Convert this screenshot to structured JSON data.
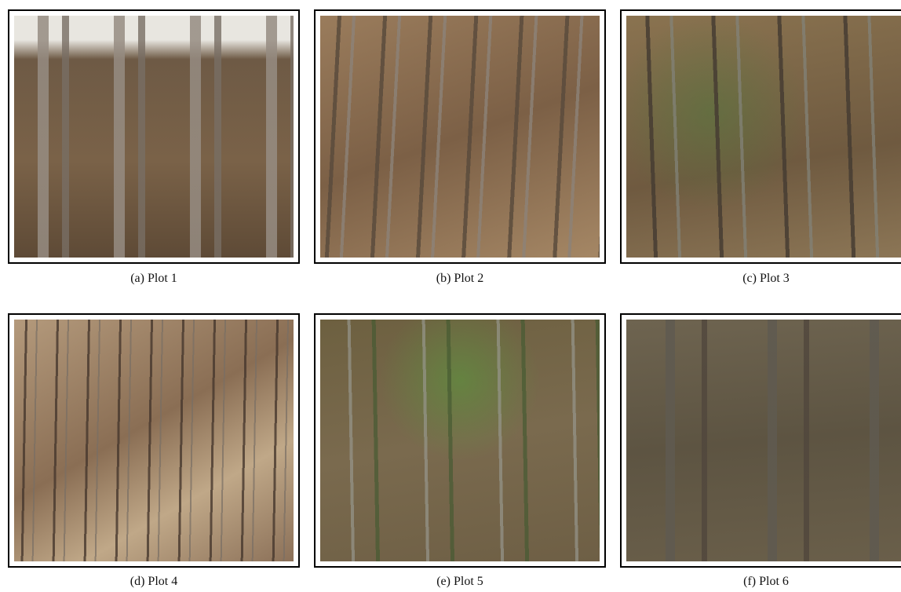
{
  "panels": [
    {
      "caption": "(a) Plot 1"
    },
    {
      "caption": "(b) Plot 2"
    },
    {
      "caption": "(c) Plot 3"
    },
    {
      "caption": "(d) Plot 4"
    },
    {
      "caption": "(e) Plot 5"
    },
    {
      "caption": "(f) Plot 6"
    }
  ]
}
